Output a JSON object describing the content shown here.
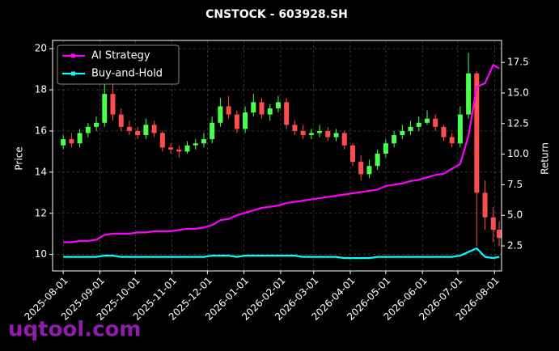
{
  "chart_data": {
    "type": "candlestick",
    "title": "CNSTOCK - 603928.SH",
    "ylabel": "Price",
    "y2label": "Return",
    "watermark": "uqtool.com",
    "x": [
      "2025-08-01",
      "2025-08-08",
      "2025-08-15",
      "2025-08-22",
      "2025-08-29",
      "2025-09-05",
      "2025-09-12",
      "2025-09-19",
      "2025-09-26",
      "2025-10-03",
      "2025-10-10",
      "2025-10-17",
      "2025-10-24",
      "2025-10-31",
      "2025-11-07",
      "2025-11-14",
      "2025-11-21",
      "2025-11-28",
      "2025-12-05",
      "2025-12-12",
      "2025-12-19",
      "2025-12-26",
      "2026-01-02",
      "2026-01-09",
      "2026-01-16",
      "2026-01-23",
      "2026-01-30",
      "2026-02-06",
      "2026-02-13",
      "2026-02-20",
      "2026-02-27",
      "2026-03-06",
      "2026-03-13",
      "2026-03-20",
      "2026-03-27",
      "2026-04-03",
      "2026-04-10",
      "2026-04-17",
      "2026-04-24",
      "2026-05-01",
      "2026-05-08",
      "2026-05-15",
      "2026-05-22",
      "2026-05-29",
      "2026-06-05",
      "2026-06-12",
      "2026-06-19",
      "2026-06-26",
      "2026-07-03",
      "2026-07-10",
      "2026-07-17",
      "2026-07-24",
      "2026-07-31",
      "2026-08-05"
    ],
    "open": [
      15.3,
      15.6,
      15.4,
      15.9,
      16.2,
      16.4,
      17.8,
      16.8,
      16.2,
      16.0,
      15.8,
      16.3,
      15.9,
      15.2,
      15.1,
      15.0,
      15.3,
      15.4,
      15.6,
      16.4,
      17.2,
      16.8,
      16.1,
      16.9,
      17.4,
      16.8,
      17.1,
      17.4,
      16.3,
      16.0,
      15.8,
      15.9,
      16.0,
      15.7,
      15.9,
      15.3,
      14.5,
      13.9,
      14.3,
      14.9,
      15.4,
      15.8,
      16.0,
      16.2,
      16.4,
      16.6,
      16.2,
      15.7,
      15.4,
      16.8,
      18.8,
      13.0,
      11.8,
      11.2
    ],
    "high": [
      15.8,
      15.9,
      16.1,
      16.4,
      16.7,
      18.7,
      18.3,
      17.1,
      16.5,
      16.2,
      16.6,
      16.5,
      16.0,
      15.4,
      15.3,
      15.5,
      15.6,
      15.9,
      16.7,
      17.6,
      17.7,
      17.0,
      17.2,
      17.8,
      17.6,
      17.3,
      17.7,
      17.6,
      16.5,
      16.3,
      16.1,
      16.3,
      16.2,
      16.1,
      16.0,
      15.4,
      14.8,
      14.6,
      15.1,
      15.6,
      16.0,
      16.3,
      16.5,
      16.7,
      17.0,
      16.8,
      16.3,
      15.9,
      17.2,
      19.8,
      18.9,
      13.6,
      12.3,
      11.6
    ],
    "low": [
      15.1,
      15.2,
      15.2,
      15.7,
      16.0,
      16.2,
      16.5,
      16.0,
      15.8,
      15.6,
      15.6,
      15.7,
      15.0,
      14.9,
      14.7,
      14.9,
      15.1,
      15.2,
      15.4,
      16.2,
      16.6,
      15.9,
      15.9,
      16.7,
      16.6,
      16.5,
      16.9,
      16.1,
      15.8,
      15.6,
      15.6,
      15.7,
      15.5,
      15.5,
      15.1,
      14.3,
      13.6,
      13.7,
      14.1,
      14.7,
      15.2,
      15.6,
      15.8,
      16.0,
      16.3,
      16.0,
      15.5,
      15.2,
      15.2,
      16.6,
      10.4,
      11.2,
      10.6,
      10.4
    ],
    "close": [
      15.6,
      15.4,
      15.9,
      16.2,
      16.4,
      17.8,
      16.8,
      16.2,
      16.0,
      15.8,
      16.3,
      15.9,
      15.2,
      15.1,
      15.0,
      15.3,
      15.4,
      15.6,
      16.4,
      17.2,
      16.8,
      16.1,
      16.9,
      17.4,
      16.8,
      17.1,
      17.4,
      16.3,
      16.0,
      15.8,
      15.9,
      16.0,
      15.7,
      15.9,
      15.3,
      14.5,
      13.9,
      14.3,
      14.9,
      15.4,
      15.8,
      16.0,
      16.2,
      16.4,
      16.6,
      16.2,
      15.7,
      15.4,
      16.8,
      18.8,
      13.0,
      11.8,
      11.2,
      10.8
    ],
    "up_color": "#4dff4d",
    "down_color": "#ff4d4d",
    "series": [
      {
        "name": "AI Strategy",
        "color": "#ff00ff",
        "axis": "y2",
        "values": [
          2.8,
          2.8,
          2.9,
          2.9,
          3.0,
          3.4,
          3.5,
          3.5,
          3.5,
          3.6,
          3.6,
          3.7,
          3.7,
          3.7,
          3.8,
          3.9,
          3.9,
          4.0,
          4.2,
          4.6,
          4.7,
          5.0,
          5.2,
          5.4,
          5.6,
          5.7,
          5.8,
          6.0,
          6.1,
          6.2,
          6.3,
          6.4,
          6.5,
          6.6,
          6.7,
          6.8,
          6.9,
          7.0,
          7.1,
          7.4,
          7.5,
          7.6,
          7.8,
          7.9,
          8.1,
          8.3,
          8.4,
          8.8,
          9.2,
          11.5,
          15.5,
          15.8,
          17.3,
          17.0
        ]
      },
      {
        "name": "Buy-and-Hold",
        "color": "#00ffff",
        "axis": "y2",
        "values": [
          1.6,
          1.6,
          1.6,
          1.6,
          1.6,
          1.7,
          1.7,
          1.6,
          1.6,
          1.6,
          1.6,
          1.6,
          1.6,
          1.6,
          1.6,
          1.6,
          1.6,
          1.6,
          1.7,
          1.7,
          1.7,
          1.6,
          1.7,
          1.7,
          1.7,
          1.7,
          1.7,
          1.7,
          1.7,
          1.6,
          1.6,
          1.6,
          1.6,
          1.6,
          1.5,
          1.5,
          1.5,
          1.5,
          1.6,
          1.6,
          1.6,
          1.6,
          1.6,
          1.6,
          1.6,
          1.6,
          1.6,
          1.6,
          1.7,
          2.0,
          2.3,
          1.6,
          1.5,
          1.6
        ]
      }
    ],
    "xlim": [
      "2025-07-23",
      "2026-08-07"
    ],
    "xticks": [
      "2025-08-01",
      "2025-09-01",
      "2025-10-01",
      "2025-11-01",
      "2025-12-01",
      "2026-01-01",
      "2026-02-01",
      "2026-03-01",
      "2026-04-01",
      "2026-05-01",
      "2026-06-01",
      "2026-07-01",
      "2026-08-01"
    ],
    "ylim": [
      9.2,
      20.4
    ],
    "yticks": [
      10,
      12,
      14,
      16,
      18,
      20
    ],
    "y2lim": [
      0.45,
      19.3
    ],
    "y2ticks": [
      2.5,
      {
        "value": 5,
        "label": "5.0"
      },
      7.5,
      {
        "value": 10,
        "label": "10.0"
      },
      12.5,
      {
        "value": 15,
        "label": "15.0"
      },
      17.5
    ],
    "grid": true,
    "legend": "upper left"
  }
}
